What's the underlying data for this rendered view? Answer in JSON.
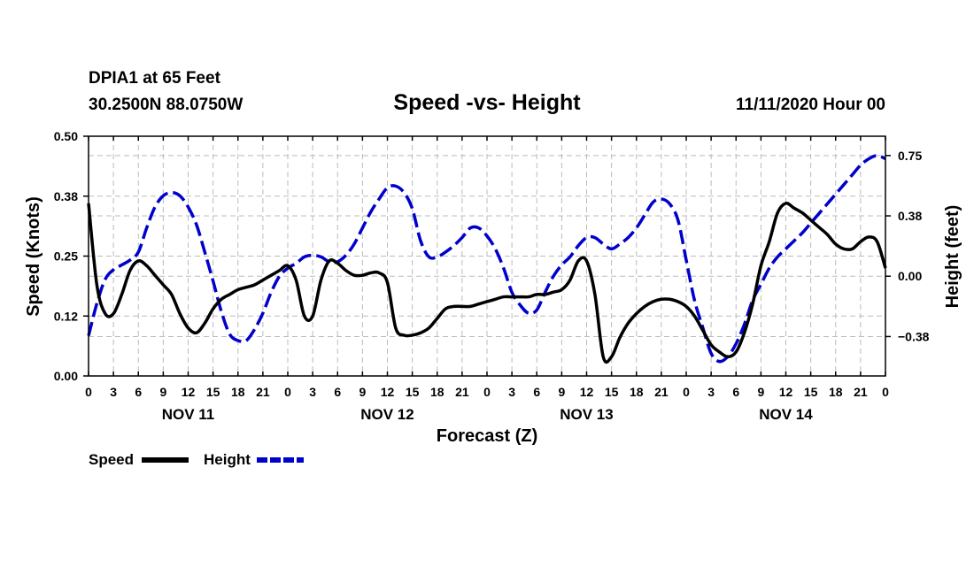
{
  "station": "DPIA1 at 65 Feet",
  "coords": "30.2500N 88.0750W",
  "timestamp": "11/11/2020 Hour 00",
  "chart_data": {
    "type": "line",
    "title": "Speed -vs- Height",
    "xlabel": "Forecast (Z)",
    "ylabel_left": "Speed (Knots)",
    "ylabel_right": "Height (feet)",
    "grid": true,
    "x_range_hours": [
      0,
      96
    ],
    "x_tick_labels": [
      "0",
      "3",
      "6",
      "9",
      "12",
      "15",
      "18",
      "21",
      "0",
      "3",
      "6",
      "9",
      "12",
      "15",
      "18",
      "21",
      "0",
      "3",
      "6",
      "9",
      "12",
      "15",
      "18",
      "21",
      "0",
      "3",
      "6",
      "9",
      "12",
      "15",
      "18",
      "21",
      "0"
    ],
    "day_labels": [
      {
        "hour": 12,
        "label": "NOV 11"
      },
      {
        "hour": 36,
        "label": "NOV 12"
      },
      {
        "hour": 60,
        "label": "NOV 13"
      },
      {
        "hour": 84,
        "label": "NOV 14"
      }
    ],
    "left_axis": {
      "min": 0,
      "max": 0.5,
      "ticks": [
        0.0,
        0.125,
        0.25,
        0.375,
        0.5
      ],
      "tick_labels": [
        "0.00",
        "0.12",
        "0.25",
        "0.38",
        "0.50"
      ]
    },
    "right_axis": {
      "min": -0.62,
      "max": 0.87,
      "ticks": [
        -0.375,
        0.0,
        0.375,
        0.75
      ],
      "tick_labels": [
        "-0.38",
        "0.00",
        "0.38",
        "0.75"
      ]
    },
    "series": [
      {
        "name": "Speed",
        "axis": "left",
        "color": "#000000",
        "dash": "solid",
        "x": [
          0,
          1,
          2,
          3,
          4,
          5,
          6,
          7,
          8,
          9,
          10,
          11,
          12,
          13,
          14,
          15,
          16,
          17,
          18,
          19,
          20,
          21,
          22,
          23,
          24,
          25,
          26,
          27,
          28,
          29,
          30,
          31,
          32,
          33,
          34,
          35,
          36,
          37,
          38,
          39,
          40,
          41,
          42,
          43,
          44,
          45,
          46,
          47,
          48,
          49,
          50,
          51,
          52,
          53,
          54,
          55,
          56,
          57,
          58,
          59,
          60,
          61,
          62,
          63,
          64,
          65,
          66,
          67,
          68,
          69,
          70,
          71,
          72,
          73,
          74,
          75,
          76,
          77,
          78,
          79,
          80,
          81,
          82,
          83,
          84,
          85,
          86,
          87,
          88,
          89,
          90,
          91,
          92,
          93,
          94,
          95,
          96
        ],
        "values": [
          0.36,
          0.19,
          0.13,
          0.13,
          0.17,
          0.22,
          0.24,
          0.23,
          0.21,
          0.19,
          0.17,
          0.13,
          0.1,
          0.09,
          0.11,
          0.14,
          0.16,
          0.17,
          0.18,
          0.185,
          0.19,
          0.2,
          0.21,
          0.22,
          0.23,
          0.2,
          0.125,
          0.125,
          0.2,
          0.24,
          0.235,
          0.22,
          0.21,
          0.21,
          0.215,
          0.215,
          0.195,
          0.1,
          0.085,
          0.085,
          0.09,
          0.1,
          0.12,
          0.14,
          0.145,
          0.145,
          0.145,
          0.15,
          0.155,
          0.16,
          0.165,
          0.165,
          0.165,
          0.165,
          0.17,
          0.17,
          0.175,
          0.18,
          0.2,
          0.24,
          0.24,
          0.17,
          0.04,
          0.04,
          0.08,
          0.11,
          0.13,
          0.145,
          0.155,
          0.16,
          0.16,
          0.155,
          0.145,
          0.125,
          0.095,
          0.065,
          0.05,
          0.04,
          0.05,
          0.09,
          0.15,
          0.23,
          0.28,
          0.34,
          0.36,
          0.35,
          0.34,
          0.325,
          0.31,
          0.295,
          0.275,
          0.265,
          0.265,
          0.28,
          0.29,
          0.28,
          0.225
        ]
      },
      {
        "name": "Height",
        "axis": "right",
        "color": "#0000cc",
        "dash": "dashed",
        "x": [
          0,
          1,
          2,
          3,
          4,
          5,
          6,
          7,
          8,
          9,
          10,
          11,
          12,
          13,
          14,
          15,
          16,
          17,
          18,
          19,
          20,
          21,
          22,
          23,
          24,
          25,
          26,
          27,
          28,
          29,
          30,
          31,
          32,
          33,
          34,
          35,
          36,
          37,
          38,
          39,
          40,
          41,
          42,
          43,
          44,
          45,
          46,
          47,
          48,
          49,
          50,
          51,
          52,
          53,
          54,
          55,
          56,
          57,
          58,
          59,
          60,
          61,
          62,
          63,
          64,
          65,
          66,
          67,
          68,
          69,
          70,
          71,
          72,
          73,
          74,
          75,
          76,
          77,
          78,
          79,
          80,
          81,
          82,
          83,
          84,
          85,
          86,
          87,
          88,
          89,
          90,
          91,
          92,
          93,
          94,
          95,
          96
        ],
        "values": [
          -0.37,
          -0.17,
          -0.02,
          0.04,
          0.07,
          0.1,
          0.15,
          0.3,
          0.43,
          0.5,
          0.52,
          0.5,
          0.43,
          0.32,
          0.15,
          -0.03,
          -0.22,
          -0.36,
          -0.4,
          -0.4,
          -0.33,
          -0.23,
          -0.1,
          0.0,
          0.05,
          0.08,
          0.12,
          0.13,
          0.12,
          0.09,
          0.09,
          0.13,
          0.2,
          0.3,
          0.4,
          0.48,
          0.55,
          0.56,
          0.52,
          0.42,
          0.22,
          0.12,
          0.12,
          0.15,
          0.19,
          0.24,
          0.3,
          0.3,
          0.25,
          0.17,
          0.05,
          -0.1,
          -0.18,
          -0.23,
          -0.21,
          -0.1,
          0.0,
          0.07,
          0.12,
          0.19,
          0.24,
          0.24,
          0.2,
          0.17,
          0.2,
          0.24,
          0.3,
          0.38,
          0.46,
          0.48,
          0.45,
          0.35,
          0.1,
          -0.15,
          -0.32,
          -0.48,
          -0.53,
          -0.5,
          -0.42,
          -0.3,
          -0.15,
          -0.05,
          0.05,
          0.12,
          0.17,
          0.22,
          0.27,
          0.33,
          0.39,
          0.45,
          0.51,
          0.57,
          0.63,
          0.69,
          0.73,
          0.75,
          0.73
        ]
      }
    ],
    "legend": [
      {
        "label": "Speed",
        "color": "#000000",
        "dash": "solid"
      },
      {
        "label": "Height",
        "color": "#0000cc",
        "dash": "dashed"
      }
    ]
  }
}
